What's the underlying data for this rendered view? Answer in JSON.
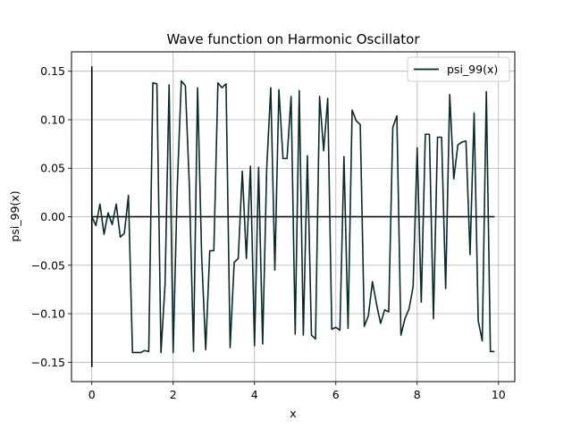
{
  "chart_data": {
    "type": "line",
    "title": "Wave function on Harmonic Oscillator",
    "xlabel": "x",
    "ylabel": "psi_99(x)",
    "xlim": [
      -0.5,
      10.4
    ],
    "ylim": [
      -0.17,
      0.17
    ],
    "xticks": [
      0,
      2,
      4,
      6,
      8,
      10
    ],
    "xtick_labels": [
      "0",
      "2",
      "4",
      "6",
      "8",
      "10"
    ],
    "yticks": [
      -0.15,
      -0.1,
      -0.05,
      0.0,
      0.05,
      0.1,
      0.15
    ],
    "ytick_labels": [
      "−0.15",
      "−0.10",
      "−0.05",
      "0.00",
      "0.05",
      "0.10",
      "0.15"
    ],
    "grid": true,
    "legend_position": "top-right",
    "series": [
      {
        "name": "psi_99(x)",
        "color": "#0a2a2a",
        "x": [
          0.0,
          0.1,
          0.2,
          0.3,
          0.4,
          0.5,
          0.6,
          0.7,
          0.8,
          0.9,
          1.0,
          1.1,
          1.2,
          1.3,
          1.4,
          1.5,
          1.6,
          1.7,
          1.8,
          1.9,
          2.0,
          2.1,
          2.2,
          2.3,
          2.4,
          2.5,
          2.6,
          2.7,
          2.8,
          2.9,
          3.0,
          3.1,
          3.2,
          3.3,
          3.4,
          3.5,
          3.6,
          3.7,
          3.8,
          3.9,
          4.0,
          4.1,
          4.2,
          4.3,
          4.4,
          4.5,
          4.6,
          4.7,
          4.8,
          4.9,
          5.0,
          5.1,
          5.2,
          5.3,
          5.4,
          5.5,
          5.6,
          5.7,
          5.8,
          5.9,
          6.0,
          6.1,
          6.2,
          6.3,
          6.4,
          6.5,
          6.6,
          6.7,
          6.8,
          6.9,
          7.0,
          7.1,
          7.2,
          7.3,
          7.4,
          7.5,
          7.6,
          7.7,
          7.8,
          7.9,
          8.0,
          8.1,
          8.2,
          8.3,
          8.4,
          8.5,
          8.6,
          8.7,
          8.8,
          8.9,
          9.0,
          9.1,
          9.2,
          9.3,
          9.4,
          9.5,
          9.6,
          9.7,
          9.8,
          9.9
        ],
        "y": [
          0.0,
          -0.009,
          0.013,
          -0.018,
          0.004,
          -0.008,
          0.013,
          -0.021,
          -0.017,
          0.022,
          -0.14,
          -0.14,
          -0.14,
          -0.138,
          -0.139,
          0.138,
          0.137,
          -0.14,
          -0.07,
          0.136,
          -0.14,
          0.03,
          0.14,
          0.135,
          0.03,
          -0.139,
          0.133,
          -0.04,
          -0.137,
          -0.035,
          -0.035,
          0.138,
          0.133,
          0.137,
          -0.135,
          -0.047,
          -0.043,
          0.047,
          -0.043,
          0.052,
          -0.133,
          0.051,
          -0.131,
          0.05,
          0.133,
          -0.055,
          0.131,
          0.06,
          0.06,
          0.124,
          -0.121,
          0.13,
          -0.122,
          0.063,
          -0.122,
          -0.126,
          0.124,
          0.068,
          0.122,
          -0.116,
          -0.114,
          -0.117,
          0.062,
          -0.115,
          0.11,
          0.099,
          0.095,
          -0.113,
          -0.102,
          -0.067,
          -0.09,
          -0.11,
          -0.096,
          -0.098,
          0.092,
          0.104,
          -0.122,
          -0.105,
          -0.095,
          -0.072,
          0.071,
          -0.088,
          0.085,
          0.085,
          -0.105,
          0.082,
          0.082,
          -0.074,
          0.126,
          0.039,
          0.074,
          0.077,
          0.078,
          -0.039,
          0.107,
          -0.107,
          -0.128,
          0.129,
          -0.139,
          -0.139
        ]
      }
    ],
    "reference_lines": [
      {
        "type": "horizontal",
        "y": 0.0,
        "x_from": 0.0,
        "x_to": 9.9,
        "color": "#000000"
      },
      {
        "type": "vertical",
        "x": 0.0,
        "y_from": -0.155,
        "y_to": 0.155,
        "color": "#000000"
      }
    ]
  }
}
